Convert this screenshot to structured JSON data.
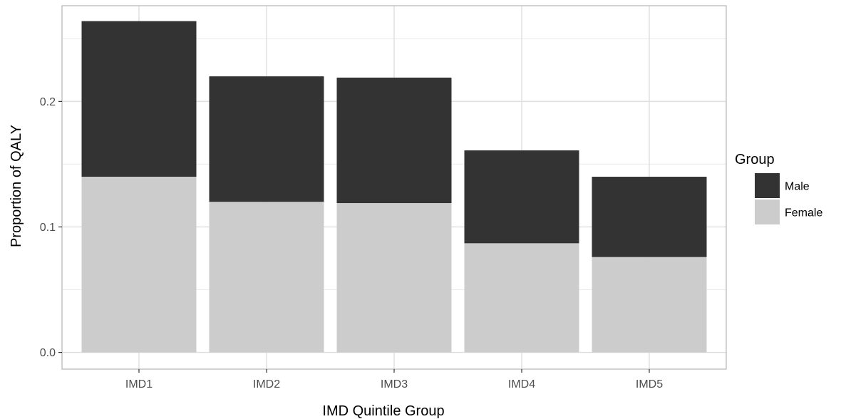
{
  "chart_data": {
    "type": "bar",
    "stacked": true,
    "categories": [
      "IMD1",
      "IMD2",
      "IMD3",
      "IMD4",
      "IMD5"
    ],
    "series": [
      {
        "name": "Female",
        "values": [
          0.14,
          0.12,
          0.119,
          0.087,
          0.076
        ]
      },
      {
        "name": "Male",
        "values": [
          0.124,
          0.1,
          0.1,
          0.074,
          0.064
        ]
      }
    ],
    "series_colors": {
      "Male": "#333333",
      "Female": "#cccccc"
    },
    "title": "",
    "xlabel": "IMD Quintile Group",
    "ylabel": "Proportion of QALY",
    "ylim": [
      -0.0133,
      0.2763
    ],
    "y_ticks": [
      0.0,
      0.1,
      0.2
    ],
    "y_tick_labels": [
      "0.0",
      "0.1",
      "0.2"
    ],
    "grid": true,
    "legend": {
      "title": "Group",
      "position": "right",
      "items": [
        "Male",
        "Female"
      ]
    }
  }
}
